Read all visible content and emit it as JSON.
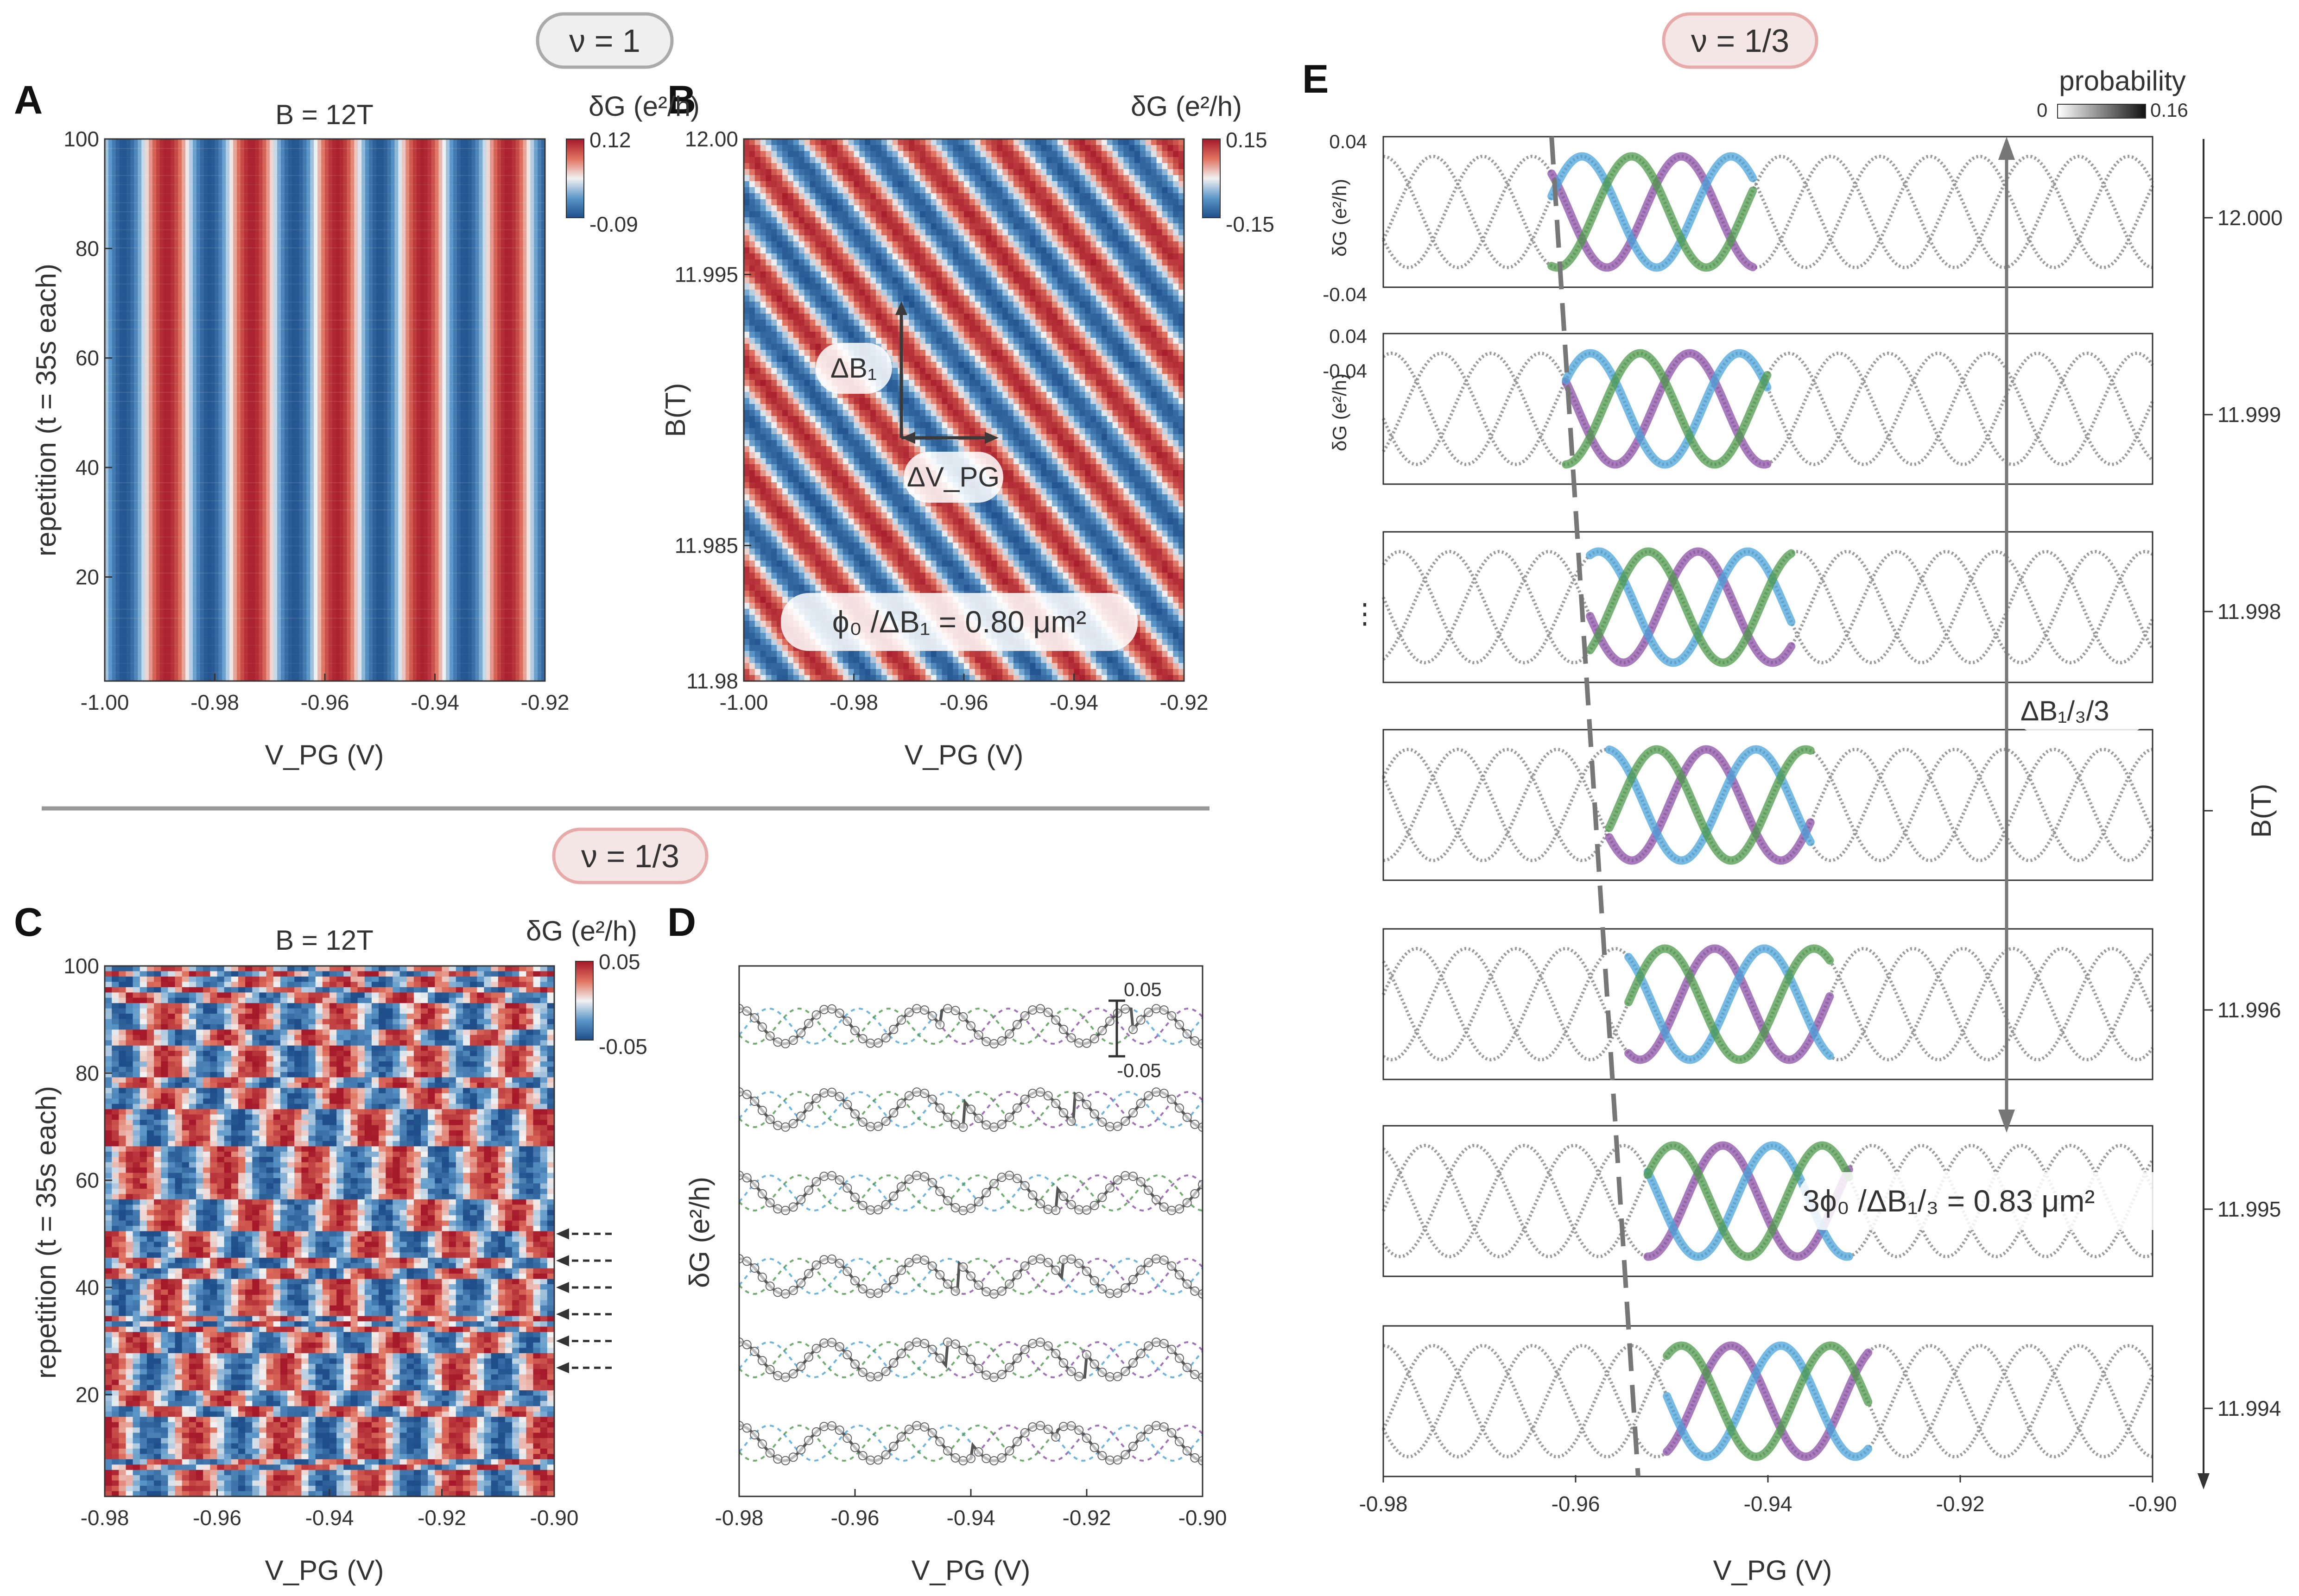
{
  "panel_letters": {
    "a": "A",
    "b": "B",
    "c": "C",
    "d": "D",
    "e": "E"
  },
  "nu_labels": {
    "top_left": "ν = 1",
    "bottom_left": "ν = 1/3",
    "right": "ν = 1/3"
  },
  "colors": {
    "diverging_low": "#1f4e8a",
    "diverging_mid": "#f2f2f2",
    "diverging_high": "#a5192a",
    "trace_purple": "#8a4fa6",
    "trace_blue": "#4aa3d9",
    "trace_green": "#4e9a4a",
    "pill_grey": "#aaaaaa",
    "pill_red": "#e8a9a9"
  },
  "chart_data": [
    {
      "id": "A",
      "type": "heatmap",
      "title": "B = 12T",
      "xlabel": "V_PG (V)",
      "ylabel": "repetition (t = 35s each)",
      "xlim": [
        -1.0,
        -0.92
      ],
      "ylim": [
        1,
        100
      ],
      "xticks": [
        "-1.00",
        "-0.98",
        "-0.96",
        "-0.94",
        "-0.92"
      ],
      "yticks": [
        "20",
        "40",
        "60",
        "80",
        "100"
      ],
      "colorbar": {
        "label": "δG (e²/h)",
        "max": "0.12",
        "min": "-0.09"
      },
      "pattern": "vertical stripes, period ≈ 0.0155 V"
    },
    {
      "id": "B",
      "type": "heatmap",
      "xlabel": "V_PG (V)",
      "ylabel": "B(T)",
      "xlim": [
        -1.0,
        -0.92
      ],
      "ylim": [
        11.98,
        12.0
      ],
      "xticks": [
        "-1.00",
        "-0.98",
        "-0.96",
        "-0.94",
        "-0.92"
      ],
      "yticks": [
        "11.98",
        "11.985",
        "11.995",
        "12.00"
      ],
      "colorbar": {
        "label": "δG (e²/h)",
        "max": "0.15",
        "min": "-0.15"
      },
      "annotations": {
        "delta_b": "ΔB₁",
        "delta_v": "ΔV_PG",
        "area": "ϕ₀ /ΔB₁ = 0.80 μm²"
      }
    },
    {
      "id": "C",
      "type": "heatmap",
      "title": "B = 12T",
      "xlabel": "V_PG (V)",
      "ylabel": "repetition (t = 35s each)",
      "xlim": [
        -0.98,
        -0.9
      ],
      "ylim": [
        1,
        100
      ],
      "xticks": [
        "-0.98",
        "-0.96",
        "-0.94",
        "-0.92",
        "-0.90"
      ],
      "yticks": [
        "20",
        "40",
        "60",
        "80",
        "100"
      ],
      "colorbar": {
        "label": "δG (e²/h)",
        "max": "0.05",
        "min": "-0.05"
      },
      "arrow_rows": [
        50,
        45,
        40,
        35,
        30,
        25
      ]
    },
    {
      "id": "D",
      "type": "line",
      "xlabel": "V_PG (V)",
      "ylabel": "δG (e²/h)",
      "xlim": [
        -0.98,
        -0.9
      ],
      "xticks": [
        "-0.98",
        "-0.96",
        "-0.94",
        "-0.92",
        "-0.90"
      ],
      "scale_bar": {
        "top": "0.05",
        "bottom": "-0.05"
      },
      "traces": 6,
      "period_v": 0.0155
    },
    {
      "id": "E",
      "type": "heatmap",
      "xlabel": "V_PG (V)",
      "ylabel_left": "δG (e²/h)",
      "ylabel_right": "B(T)",
      "xlim": [
        -0.98,
        -0.9
      ],
      "xticks": [
        "-0.98",
        "-0.96",
        "-0.94",
        "-0.92",
        "-0.90"
      ],
      "left_ticks": {
        "top": "0.04",
        "bottom": "-0.04"
      },
      "right_ticks": [
        "12.000",
        "11.999",
        "11.998",
        "11.996",
        "11.995",
        "11.994"
      ],
      "colorbar": {
        "label": "probability",
        "min": "0",
        "max": "0.16"
      },
      "ellipsis": "⋮",
      "annotations": {
        "delta_b": "ΔB₁/₃/3",
        "area": "3ϕ₀ /ΔB₁/₃ = 0.83 μm²"
      },
      "subpanels": 7,
      "period_v": 0.0155,
      "highlight_start_v": [
        -0.9625,
        -0.961,
        -0.9585,
        -0.9565,
        -0.9545,
        -0.9525,
        -0.9505
      ]
    }
  ]
}
